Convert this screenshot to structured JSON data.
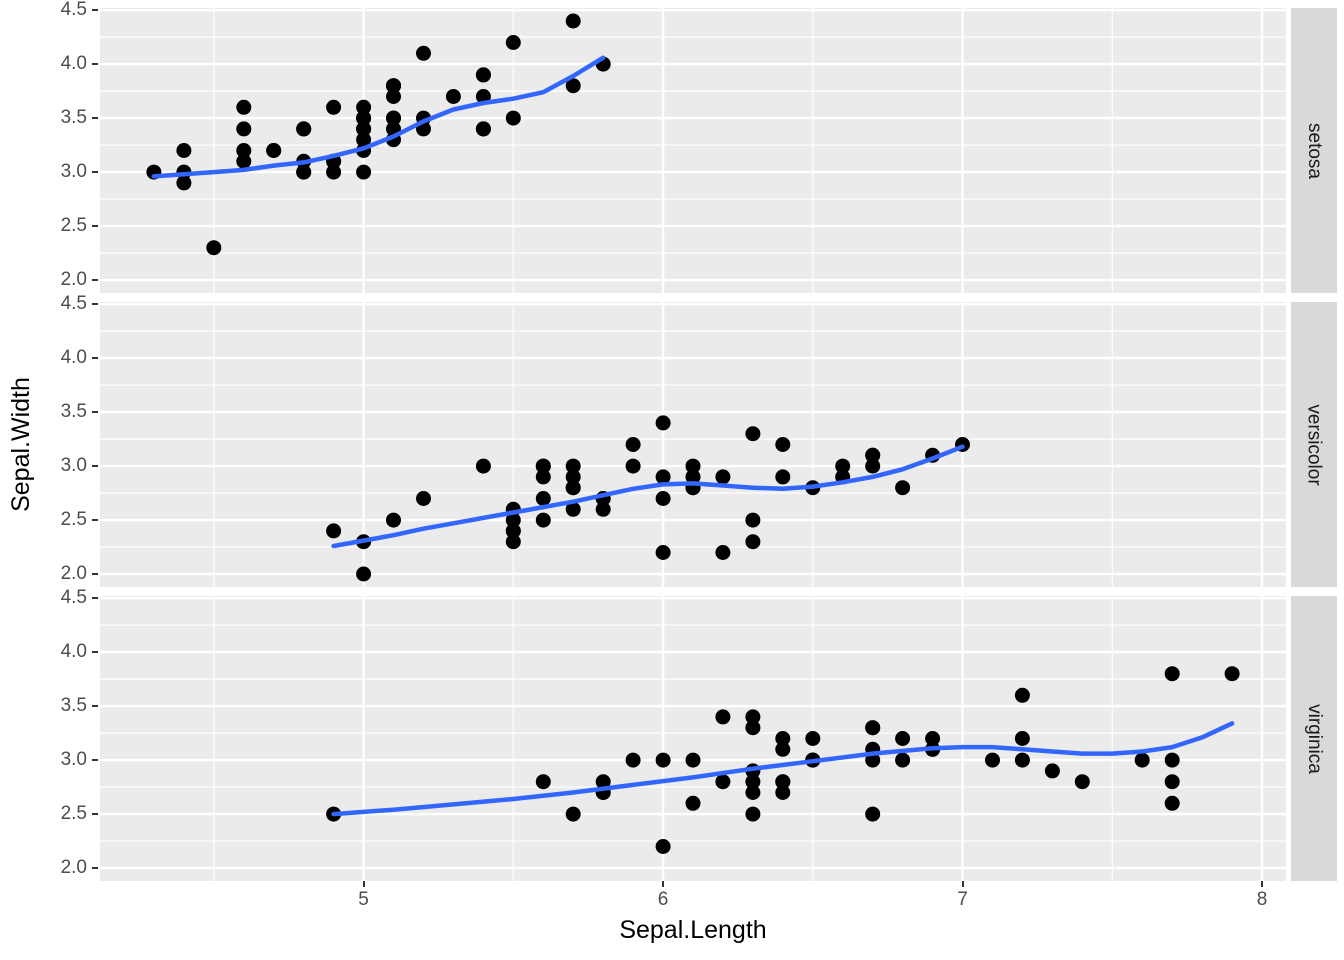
{
  "chart_data": {
    "type": "scatter",
    "title": "",
    "xlabel": "Sepal.Length",
    "ylabel": "Sepal.Width",
    "xlim": [
      4.12,
      8.08
    ],
    "ylim": [
      1.88,
      4.52
    ],
    "x_ticks": [
      5,
      6,
      7,
      8
    ],
    "x_tick_labels": [
      "5",
      "6",
      "7",
      "8"
    ],
    "y_ticks": [
      2.0,
      2.5,
      3.0,
      3.5,
      4.0,
      4.5
    ],
    "y_tick_labels": [
      "2.0",
      "2.5",
      "3.0",
      "3.5",
      "4.0",
      "4.5"
    ],
    "grid": "major-and-minor",
    "legend": "none",
    "facet_variable_values": [
      "setosa",
      "versicolor",
      "virginica"
    ],
    "colors": {
      "point": "#000000",
      "smooth_line": "#3366FF",
      "panel_background": "#EBEBEB",
      "grid_line": "#FFFFFF",
      "strip_background": "#D9D9D9",
      "axis_text": "#4D4D4D",
      "axis_title": "#000000",
      "tick_mark": "#333333"
    },
    "facets": [
      {
        "label": "setosa",
        "points": [
          [
            5.1,
            3.5
          ],
          [
            4.9,
            3.0
          ],
          [
            4.7,
            3.2
          ],
          [
            4.6,
            3.1
          ],
          [
            5.0,
            3.6
          ],
          [
            5.4,
            3.9
          ],
          [
            4.6,
            3.4
          ],
          [
            5.0,
            3.4
          ],
          [
            4.4,
            2.9
          ],
          [
            4.9,
            3.1
          ],
          [
            5.4,
            3.7
          ],
          [
            4.8,
            3.4
          ],
          [
            4.8,
            3.0
          ],
          [
            4.3,
            3.0
          ],
          [
            5.8,
            4.0
          ],
          [
            5.7,
            4.4
          ],
          [
            5.4,
            3.9
          ],
          [
            5.1,
            3.5
          ],
          [
            5.7,
            3.8
          ],
          [
            5.1,
            3.8
          ],
          [
            5.4,
            3.4
          ],
          [
            5.1,
            3.7
          ],
          [
            4.6,
            3.6
          ],
          [
            5.1,
            3.3
          ],
          [
            4.8,
            3.4
          ],
          [
            5.0,
            3.0
          ],
          [
            5.0,
            3.4
          ],
          [
            5.2,
            3.5
          ],
          [
            5.2,
            3.4
          ],
          [
            4.7,
            3.2
          ],
          [
            4.8,
            3.1
          ],
          [
            5.4,
            3.4
          ],
          [
            5.2,
            4.1
          ],
          [
            5.5,
            4.2
          ],
          [
            4.9,
            3.1
          ],
          [
            5.0,
            3.2
          ],
          [
            5.5,
            3.5
          ],
          [
            4.9,
            3.6
          ],
          [
            4.4,
            3.0
          ],
          [
            5.1,
            3.4
          ],
          [
            5.0,
            3.5
          ],
          [
            4.5,
            2.3
          ],
          [
            4.4,
            3.2
          ],
          [
            5.0,
            3.5
          ],
          [
            5.1,
            3.8
          ],
          [
            4.8,
            3.0
          ],
          [
            5.1,
            3.8
          ],
          [
            4.6,
            3.2
          ],
          [
            5.3,
            3.7
          ],
          [
            5.0,
            3.3
          ]
        ],
        "smooth": [
          [
            4.3,
            2.96
          ],
          [
            4.4,
            2.98
          ],
          [
            4.5,
            3.0
          ],
          [
            4.6,
            3.02
          ],
          [
            4.7,
            3.06
          ],
          [
            4.8,
            3.09
          ],
          [
            4.9,
            3.15
          ],
          [
            5.0,
            3.22
          ],
          [
            5.1,
            3.33
          ],
          [
            5.2,
            3.47
          ],
          [
            5.3,
            3.58
          ],
          [
            5.4,
            3.64
          ],
          [
            5.5,
            3.68
          ],
          [
            5.6,
            3.74
          ],
          [
            5.7,
            3.89
          ],
          [
            5.8,
            4.06
          ]
        ]
      },
      {
        "label": "versicolor",
        "points": [
          [
            7.0,
            3.2
          ],
          [
            6.4,
            3.2
          ],
          [
            6.9,
            3.1
          ],
          [
            5.5,
            2.3
          ],
          [
            6.5,
            2.8
          ],
          [
            5.7,
            2.8
          ],
          [
            6.3,
            3.3
          ],
          [
            4.9,
            2.4
          ],
          [
            6.6,
            2.9
          ],
          [
            5.2,
            2.7
          ],
          [
            5.0,
            2.0
          ],
          [
            5.9,
            3.0
          ],
          [
            6.0,
            2.2
          ],
          [
            6.1,
            2.9
          ],
          [
            5.6,
            2.9
          ],
          [
            6.7,
            3.1
          ],
          [
            5.6,
            3.0
          ],
          [
            5.8,
            2.7
          ],
          [
            6.2,
            2.2
          ],
          [
            5.6,
            2.5
          ],
          [
            5.9,
            3.2
          ],
          [
            6.1,
            2.8
          ],
          [
            6.3,
            2.5
          ],
          [
            6.1,
            2.8
          ],
          [
            6.4,
            2.9
          ],
          [
            6.6,
            3.0
          ],
          [
            6.8,
            2.8
          ],
          [
            6.7,
            3.0
          ],
          [
            6.0,
            2.9
          ],
          [
            5.7,
            2.6
          ],
          [
            5.5,
            2.4
          ],
          [
            5.5,
            2.4
          ],
          [
            5.8,
            2.7
          ],
          [
            6.0,
            2.7
          ],
          [
            5.4,
            3.0
          ],
          [
            6.0,
            3.4
          ],
          [
            6.7,
            3.1
          ],
          [
            6.3,
            2.3
          ],
          [
            5.6,
            3.0
          ],
          [
            5.5,
            2.5
          ],
          [
            5.5,
            2.6
          ],
          [
            6.1,
            3.0
          ],
          [
            5.8,
            2.6
          ],
          [
            5.0,
            2.3
          ],
          [
            5.6,
            2.7
          ],
          [
            5.7,
            3.0
          ],
          [
            5.7,
            2.9
          ],
          [
            6.2,
            2.9
          ],
          [
            5.1,
            2.5
          ],
          [
            5.7,
            2.8
          ]
        ],
        "smooth": [
          [
            4.9,
            2.26
          ],
          [
            5.0,
            2.31
          ],
          [
            5.1,
            2.36
          ],
          [
            5.2,
            2.42
          ],
          [
            5.3,
            2.47
          ],
          [
            5.4,
            2.52
          ],
          [
            5.5,
            2.57
          ],
          [
            5.6,
            2.62
          ],
          [
            5.7,
            2.67
          ],
          [
            5.8,
            2.73
          ],
          [
            5.9,
            2.79
          ],
          [
            6.0,
            2.83
          ],
          [
            6.1,
            2.84
          ],
          [
            6.2,
            2.82
          ],
          [
            6.3,
            2.8
          ],
          [
            6.4,
            2.79
          ],
          [
            6.5,
            2.81
          ],
          [
            6.6,
            2.85
          ],
          [
            6.7,
            2.9
          ],
          [
            6.8,
            2.97
          ],
          [
            6.9,
            3.07
          ],
          [
            7.0,
            3.18
          ]
        ]
      },
      {
        "label": "virginica",
        "points": [
          [
            6.3,
            3.3
          ],
          [
            5.8,
            2.7
          ],
          [
            7.1,
            3.0
          ],
          [
            6.3,
            2.9
          ],
          [
            6.5,
            3.0
          ],
          [
            7.6,
            3.0
          ],
          [
            4.9,
            2.5
          ],
          [
            7.3,
            2.9
          ],
          [
            6.7,
            2.5
          ],
          [
            7.2,
            3.6
          ],
          [
            6.5,
            3.2
          ],
          [
            6.4,
            2.7
          ],
          [
            6.8,
            3.0
          ],
          [
            5.7,
            2.5
          ],
          [
            5.8,
            2.8
          ],
          [
            6.4,
            3.2
          ],
          [
            6.5,
            3.0
          ],
          [
            7.7,
            3.8
          ],
          [
            7.7,
            2.6
          ],
          [
            6.0,
            2.2
          ],
          [
            6.9,
            3.2
          ],
          [
            5.6,
            2.8
          ],
          [
            7.7,
            2.8
          ],
          [
            6.3,
            2.7
          ],
          [
            6.7,
            3.3
          ],
          [
            7.2,
            3.2
          ],
          [
            6.2,
            2.8
          ],
          [
            6.1,
            3.0
          ],
          [
            6.4,
            2.8
          ],
          [
            7.2,
            3.0
          ],
          [
            7.4,
            2.8
          ],
          [
            7.9,
            3.8
          ],
          [
            6.4,
            2.8
          ],
          [
            6.3,
            2.8
          ],
          [
            6.1,
            2.6
          ],
          [
            7.7,
            3.0
          ],
          [
            6.3,
            3.4
          ],
          [
            6.4,
            3.1
          ],
          [
            6.0,
            3.0
          ],
          [
            6.9,
            3.1
          ],
          [
            6.7,
            3.1
          ],
          [
            6.9,
            3.1
          ],
          [
            5.8,
            2.7
          ],
          [
            6.8,
            3.2
          ],
          [
            6.7,
            3.3
          ],
          [
            6.7,
            3.0
          ],
          [
            6.3,
            2.5
          ],
          [
            6.5,
            3.0
          ],
          [
            6.2,
            3.4
          ],
          [
            5.9,
            3.0
          ]
        ],
        "smooth": [
          [
            4.9,
            2.5
          ],
          [
            5.1,
            2.54
          ],
          [
            5.3,
            2.59
          ],
          [
            5.5,
            2.64
          ],
          [
            5.7,
            2.7
          ],
          [
            5.9,
            2.77
          ],
          [
            6.1,
            2.84
          ],
          [
            6.3,
            2.92
          ],
          [
            6.5,
            2.99
          ],
          [
            6.7,
            3.06
          ],
          [
            6.9,
            3.11
          ],
          [
            7.0,
            3.12
          ],
          [
            7.1,
            3.12
          ],
          [
            7.2,
            3.1
          ],
          [
            7.3,
            3.08
          ],
          [
            7.4,
            3.06
          ],
          [
            7.5,
            3.06
          ],
          [
            7.6,
            3.08
          ],
          [
            7.7,
            3.12
          ],
          [
            7.8,
            3.21
          ],
          [
            7.9,
            3.34
          ]
        ]
      }
    ]
  }
}
